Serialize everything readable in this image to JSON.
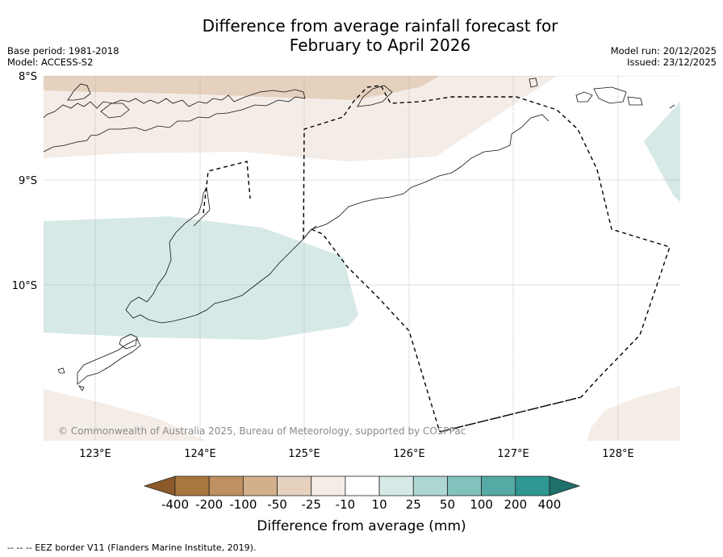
{
  "header": {
    "title_line1": "Difference from average rainfall forecast for",
    "title_line2": "February to April 2026",
    "base_period": "Base period: 1981-2018",
    "model": "Model: ACCESS-S2",
    "model_run": "Model run: 20/12/2025",
    "issued": "Issued: 23/12/2025"
  },
  "map": {
    "lat_labels": [
      "8°S",
      "9°S",
      "10°S"
    ],
    "lon_labels": [
      "123°E",
      "124°E",
      "125°E",
      "126°E",
      "127°E",
      "128°E"
    ],
    "copyright": "© Commonwealth of Australia 2025, Bureau of Meteorology, supported by COSPPac"
  },
  "colorbar": {
    "ticks": [
      "-400",
      "-200",
      "-100",
      "-50",
      "-25",
      "-10",
      "10",
      "25",
      "50",
      "100",
      "200",
      "400"
    ],
    "colors": [
      "#8c5a2a",
      "#a8773f",
      "#bf9060",
      "#d3b08c",
      "#e5d1be",
      "#f4ede7",
      "#ffffff",
      "#d6e9e7",
      "#aed6d3",
      "#82c2bd",
      "#56aaa5",
      "#2e9792",
      "#1f6f6b"
    ],
    "label": "Difference from average (mm)"
  },
  "footer": {
    "legend": "-- -- -- EEZ border V11 (Flanders Marine Institute, 2019)."
  }
}
